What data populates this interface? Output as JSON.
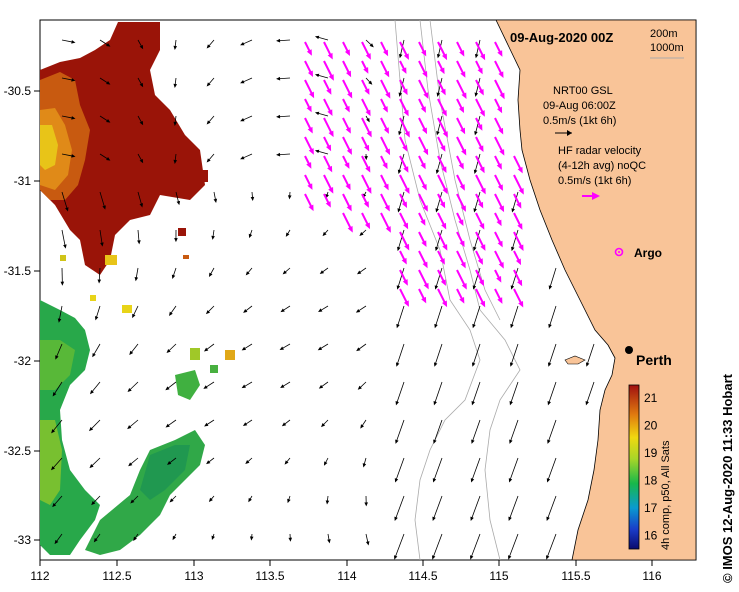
{
  "map": {
    "title": "09-Aug-2020 00Z",
    "depth_legend": [
      "200m",
      "1000m"
    ],
    "lon_ticks": [
      "112",
      "112.5",
      "113",
      "113.5",
      "114",
      "114.5",
      "115",
      "115.5",
      "116"
    ],
    "lat_ticks": [
      "-30.5",
      "-31",
      "-31.5",
      "-32",
      "-32.5",
      "-33"
    ],
    "gsl_legend": [
      "NRT00 GSL",
      "09-Aug 06:00Z",
      "0.5m/s (1kt 6h)"
    ],
    "hf_legend": [
      "HF radar velocity",
      "(4-12h avg) noQC",
      "0.5m/s (1kt 6h)"
    ],
    "argo_label": "Argo",
    "city_label": "Perth",
    "colorbar": {
      "ticks": [
        "21",
        "20",
        "19",
        "18",
        "17",
        "16"
      ],
      "label": "4h comp, p50, All Sats"
    },
    "credit": "© IMOS 12-Aug-2020 11:33 Hobart",
    "colors": {
      "land": "#f9c498",
      "hf_vectors": "#ff00ff",
      "gsl_vectors": "#000000"
    }
  }
}
